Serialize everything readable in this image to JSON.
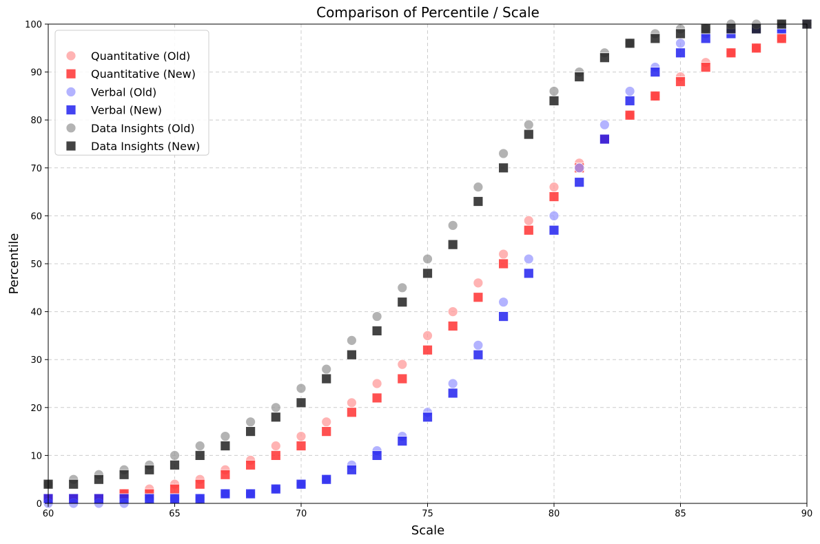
{
  "chart_data": {
    "type": "scatter",
    "title": "Comparison of Percentile / Scale",
    "xlabel": "Scale",
    "ylabel": "Percentile",
    "xlim": [
      60,
      90
    ],
    "ylim": [
      0,
      100
    ],
    "xticks": [
      60,
      65,
      70,
      75,
      80,
      85,
      90
    ],
    "yticks": [
      0,
      10,
      20,
      30,
      40,
      50,
      60,
      70,
      80,
      90,
      100
    ],
    "grid": true,
    "legend_position": "upper-left",
    "series": [
      {
        "name": "Quantitative (Old)",
        "marker": "circle",
        "color": "#ff9999",
        "x": [
          60,
          61,
          62,
          63,
          64,
          65,
          66,
          67,
          68,
          69,
          70,
          71,
          72,
          73,
          74,
          75,
          76,
          77,
          78,
          79,
          80,
          81,
          82,
          83,
          84,
          85,
          86,
          87,
          88,
          89,
          90
        ],
        "y": [
          1,
          1,
          1,
          2,
          3,
          4,
          5,
          7,
          9,
          12,
          14,
          17,
          21,
          25,
          29,
          35,
          40,
          46,
          52,
          59,
          66,
          71,
          76,
          81,
          85,
          89,
          92,
          94,
          95,
          97,
          100
        ]
      },
      {
        "name": "Quantitative (New)",
        "marker": "square",
        "color": "#ff3333",
        "x": [
          60,
          61,
          62,
          63,
          64,
          65,
          66,
          67,
          68,
          69,
          70,
          71,
          72,
          73,
          74,
          75,
          76,
          77,
          78,
          79,
          80,
          81,
          82,
          83,
          84,
          85,
          86,
          87,
          88,
          89,
          90
        ],
        "y": [
          1,
          1,
          1,
          2,
          2,
          3,
          4,
          6,
          8,
          10,
          12,
          15,
          19,
          22,
          26,
          32,
          37,
          43,
          50,
          57,
          64,
          70,
          76,
          81,
          85,
          88,
          91,
          94,
          95,
          97,
          100
        ]
      },
      {
        "name": "Verbal (Old)",
        "marker": "circle",
        "color": "#9999ff",
        "x": [
          60,
          61,
          62,
          63,
          64,
          65,
          66,
          67,
          68,
          69,
          70,
          71,
          72,
          73,
          74,
          75,
          76,
          77,
          78,
          79,
          80,
          81,
          82,
          83,
          84,
          85,
          86,
          87,
          88,
          89,
          90
        ],
        "y": [
          0,
          0,
          0,
          0,
          1,
          1,
          1,
          2,
          2,
          3,
          4,
          5,
          8,
          11,
          14,
          19,
          25,
          33,
          42,
          51,
          60,
          70,
          79,
          86,
          91,
          96,
          98,
          99,
          99,
          99,
          100
        ]
      },
      {
        "name": "Verbal (New)",
        "marker": "square",
        "color": "#2222ee",
        "x": [
          60,
          61,
          62,
          63,
          64,
          65,
          66,
          67,
          68,
          69,
          70,
          71,
          72,
          73,
          74,
          75,
          76,
          77,
          78,
          79,
          80,
          81,
          82,
          83,
          84,
          85,
          86,
          87,
          88,
          89,
          90
        ],
        "y": [
          1,
          1,
          1,
          1,
          1,
          1,
          1,
          2,
          2,
          3,
          4,
          5,
          7,
          10,
          13,
          18,
          23,
          31,
          39,
          48,
          57,
          67,
          76,
          84,
          90,
          94,
          97,
          98,
          99,
          99,
          100
        ]
      },
      {
        "name": "Data Insights (Old)",
        "marker": "circle",
        "color": "#999999",
        "x": [
          60,
          61,
          62,
          63,
          64,
          65,
          66,
          67,
          68,
          69,
          70,
          71,
          72,
          73,
          74,
          75,
          76,
          77,
          78,
          79,
          80,
          81,
          82,
          83,
          84,
          85,
          86,
          87,
          88,
          89,
          90
        ],
        "y": [
          4,
          5,
          6,
          7,
          8,
          10,
          12,
          14,
          17,
          20,
          24,
          28,
          34,
          39,
          45,
          51,
          58,
          66,
          73,
          79,
          86,
          90,
          94,
          96,
          98,
          99,
          99,
          100,
          100,
          100,
          100
        ]
      },
      {
        "name": "Data Insights (New)",
        "marker": "square",
        "color": "#222222",
        "x": [
          60,
          61,
          62,
          63,
          64,
          65,
          66,
          67,
          68,
          69,
          70,
          71,
          72,
          73,
          74,
          75,
          76,
          77,
          78,
          79,
          80,
          81,
          82,
          83,
          84,
          85,
          86,
          87,
          88,
          89,
          90
        ],
        "y": [
          4,
          4,
          5,
          6,
          7,
          8,
          10,
          12,
          15,
          18,
          21,
          26,
          31,
          36,
          42,
          48,
          54,
          63,
          70,
          77,
          84,
          89,
          93,
          96,
          97,
          98,
          99,
          99,
          99,
          100,
          100
        ]
      }
    ]
  }
}
